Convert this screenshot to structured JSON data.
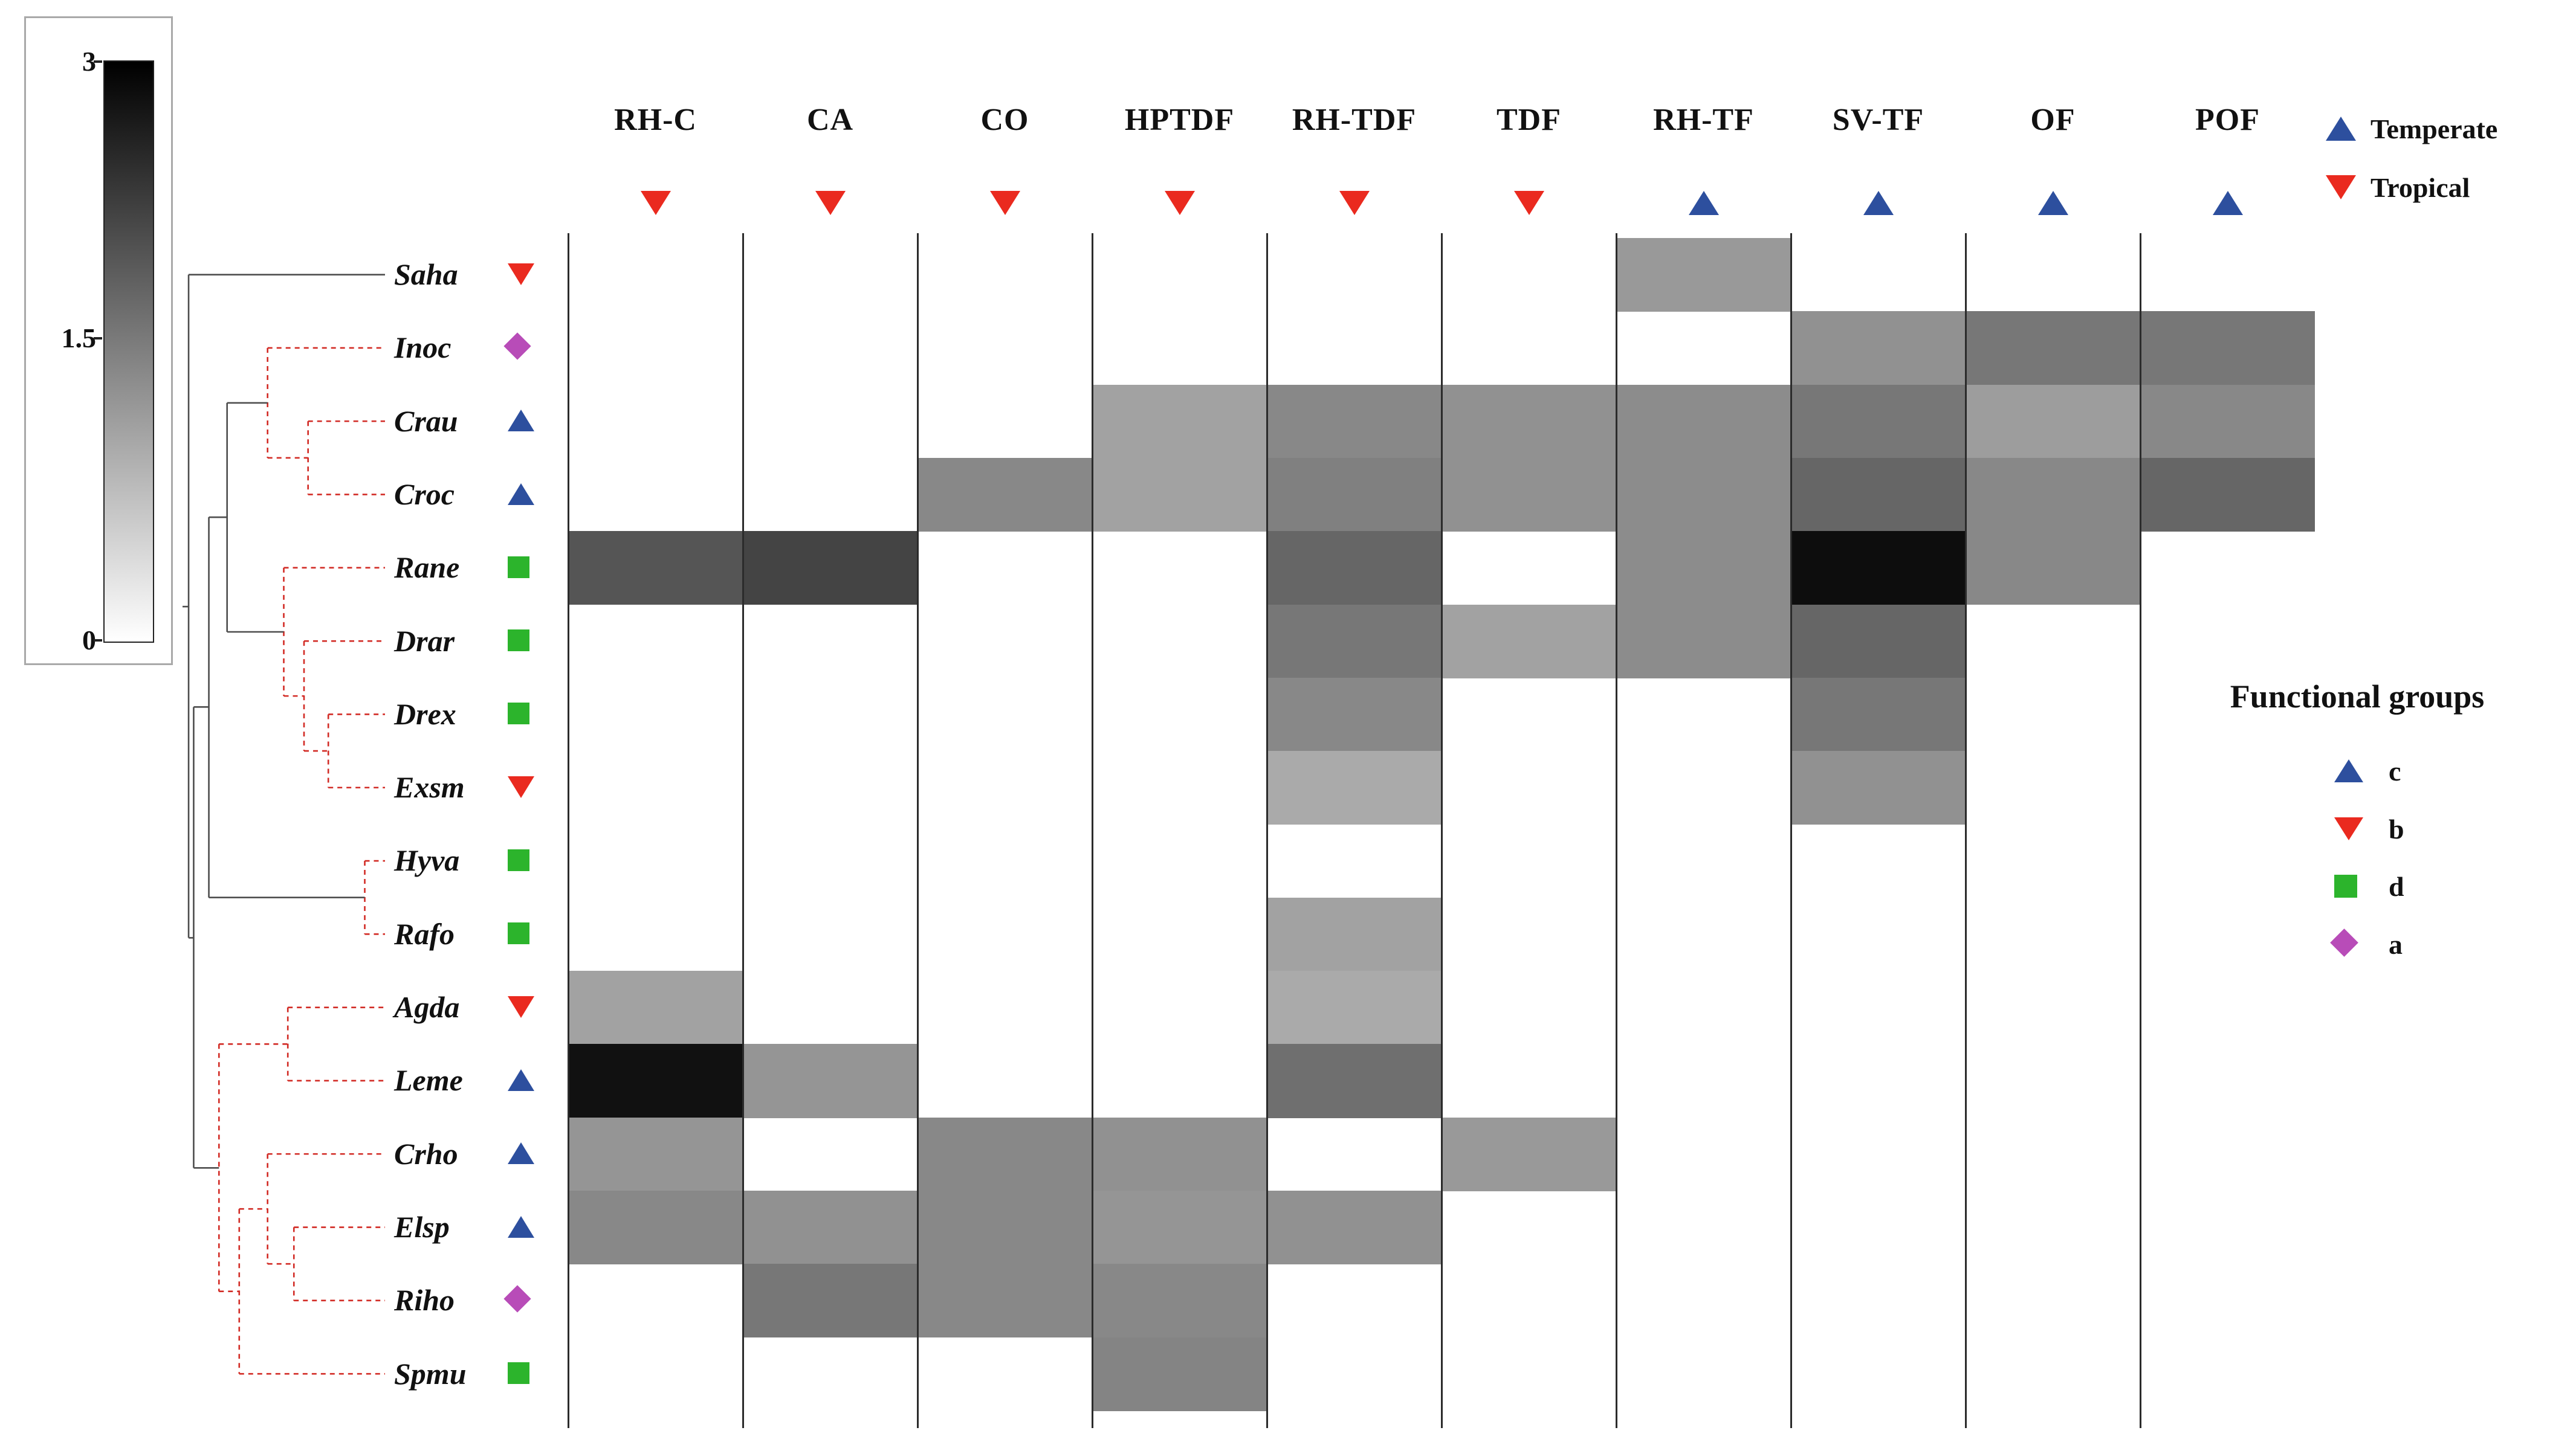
{
  "figure": {
    "type": "clustered-heatmap"
  },
  "colorbar": {
    "max": "3",
    "mid": "1.5",
    "min": "0",
    "top_color": "#000000",
    "bottom_color": "#ffffff"
  },
  "markers": {
    "triangle-up": "#2d4f9e",
    "triangle-down": "#ea2a1f",
    "square": "#2cb42c",
    "diamond": "#b84cb8"
  },
  "climate_legend": {
    "items": [
      {
        "label": "Temperate",
        "marker": "triangle-up"
      },
      {
        "label": "Tropical",
        "marker": "triangle-down"
      }
    ]
  },
  "functional_groups": {
    "title": "Functional groups",
    "items": [
      {
        "label": "c",
        "marker": "triangle-up"
      },
      {
        "label": "b",
        "marker": "triangle-down"
      },
      {
        "label": "d",
        "marker": "square"
      },
      {
        "label": "a",
        "marker": "diamond"
      }
    ]
  },
  "chart_data": {
    "type": "heatmap",
    "title": "",
    "columns": [
      {
        "label": "RH-C",
        "climate": "Tropical",
        "marker": "triangle-down"
      },
      {
        "label": "CA",
        "climate": "Tropical",
        "marker": "triangle-down"
      },
      {
        "label": "CO",
        "climate": "Tropical",
        "marker": "triangle-down"
      },
      {
        "label": "HPTDF",
        "climate": "Tropical",
        "marker": "triangle-down"
      },
      {
        "label": "RH-TDF",
        "climate": "Tropical",
        "marker": "triangle-down"
      },
      {
        "label": "TDF",
        "climate": "Tropical",
        "marker": "triangle-down"
      },
      {
        "label": "RH-TF",
        "climate": "Temperate",
        "marker": "triangle-up"
      },
      {
        "label": "SV-TF",
        "climate": "Temperate",
        "marker": "triangle-up"
      },
      {
        "label": "OF",
        "climate": "Temperate",
        "marker": "triangle-up"
      },
      {
        "label": "POF",
        "climate": "Temperate",
        "marker": "triangle-up"
      }
    ],
    "rows": [
      {
        "label": "Saha",
        "functional_group": "b",
        "marker": "triangle-down"
      },
      {
        "label": "Inoc",
        "functional_group": "a",
        "marker": "diamond"
      },
      {
        "label": "Crau",
        "functional_group": "c",
        "marker": "triangle-up"
      },
      {
        "label": "Croc",
        "functional_group": "c",
        "marker": "triangle-up"
      },
      {
        "label": "Rane",
        "functional_group": "d",
        "marker": "square"
      },
      {
        "label": "Drar",
        "functional_group": "d",
        "marker": "square"
      },
      {
        "label": "Drex",
        "functional_group": "d",
        "marker": "square"
      },
      {
        "label": "Exsm",
        "functional_group": "b",
        "marker": "triangle-down"
      },
      {
        "label": "Hyva",
        "functional_group": "d",
        "marker": "square"
      },
      {
        "label": "Rafo",
        "functional_group": "d",
        "marker": "square"
      },
      {
        "label": "Agda",
        "functional_group": "b",
        "marker": "triangle-down"
      },
      {
        "label": "Leme",
        "functional_group": "c",
        "marker": "triangle-up"
      },
      {
        "label": "Crho",
        "functional_group": "c",
        "marker": "triangle-up"
      },
      {
        "label": "Elsp",
        "functional_group": "c",
        "marker": "triangle-up"
      },
      {
        "label": "Riho",
        "functional_group": "a",
        "marker": "diamond"
      },
      {
        "label": "Spmu",
        "functional_group": "d",
        "marker": "square"
      }
    ],
    "values": [
      [
        0,
        0,
        0,
        0,
        0,
        0,
        1.2,
        0,
        0,
        0
      ],
      [
        0,
        0,
        0,
        0,
        0,
        0,
        0,
        1.3,
        1.6,
        1.6
      ],
      [
        0,
        0,
        0,
        1.1,
        1.4,
        1.3,
        1.35,
        1.6,
        1.15,
        1.4
      ],
      [
        0,
        0,
        1.4,
        1.1,
        1.5,
        1.3,
        1.35,
        1.8,
        1.4,
        1.8
      ],
      [
        2.0,
        2.2,
        0,
        0,
        1.8,
        0,
        1.35,
        2.85,
        1.4,
        0
      ],
      [
        0,
        0,
        0,
        0,
        1.6,
        1.1,
        1.35,
        1.8,
        0,
        0
      ],
      [
        0,
        0,
        0,
        0,
        1.4,
        0,
        0,
        1.6,
        0,
        0
      ],
      [
        0,
        0,
        0,
        0,
        1.0,
        0,
        0,
        1.3,
        0,
        0
      ],
      [
        0,
        0,
        0,
        0,
        0,
        0,
        0,
        0,
        0,
        0
      ],
      [
        0,
        0,
        0,
        0,
        1.1,
        0,
        0,
        0,
        0,
        0
      ],
      [
        1.1,
        0,
        0,
        0,
        1.0,
        0,
        0,
        0,
        0,
        0
      ],
      [
        2.8,
        1.25,
        0,
        0,
        1.7,
        0,
        0,
        0,
        0,
        0
      ],
      [
        1.25,
        0,
        1.4,
        1.3,
        0,
        1.2,
        0,
        0,
        0,
        0
      ],
      [
        1.4,
        1.3,
        1.4,
        1.25,
        1.3,
        0,
        0,
        0,
        0,
        0
      ],
      [
        0,
        1.6,
        1.4,
        1.4,
        0,
        0,
        0,
        0,
        0,
        0
      ],
      [
        0,
        0,
        0,
        1.45,
        0,
        0,
        0,
        0,
        0,
        0
      ]
    ],
    "scale": {
      "min": 0,
      "mid": 1.5,
      "max": 3,
      "min_color": "#ffffff",
      "max_color": "#000000"
    },
    "dendrogram": {
      "styles": {
        "red": {
          "color": "#d22b25",
          "dashed": true
        },
        "gray": {
          "color": "#4d4d4d",
          "dashed": false
        }
      },
      "segments": [
        [
          0.03,
          0,
          1,
          0,
          "gray"
        ],
        [
          0.42,
          1,
          1,
          1,
          "red"
        ],
        [
          0.62,
          2,
          1,
          2,
          "red"
        ],
        [
          0.62,
          3,
          1,
          3,
          "red"
        ],
        [
          0.62,
          2,
          0.62,
          3,
          "red"
        ],
        [
          0.42,
          2.5,
          0.62,
          2.5,
          "red"
        ],
        [
          0.42,
          1,
          0.42,
          2.5,
          "red"
        ],
        [
          0.5,
          4,
          1,
          4,
          "red"
        ],
        [
          0.6,
          5,
          1,
          5,
          "red"
        ],
        [
          0.72,
          6,
          1,
          6,
          "red"
        ],
        [
          0.72,
          7,
          1,
          7,
          "red"
        ],
        [
          0.72,
          6,
          0.72,
          7,
          "red"
        ],
        [
          0.6,
          6.5,
          0.72,
          6.5,
          "red"
        ],
        [
          0.6,
          5,
          0.6,
          6.5,
          "red"
        ],
        [
          0.5,
          5.75,
          0.6,
          5.75,
          "red"
        ],
        [
          0.5,
          4,
          0.5,
          5.75,
          "red"
        ],
        [
          0.22,
          1.75,
          0.42,
          1.75,
          "gray"
        ],
        [
          0.22,
          4.875,
          0.5,
          4.875,
          "gray"
        ],
        [
          0.22,
          1.75,
          0.22,
          4.875,
          "gray"
        ],
        [
          0.9,
          8,
          1,
          8,
          "red"
        ],
        [
          0.9,
          9,
          1,
          9,
          "red"
        ],
        [
          0.9,
          8,
          0.9,
          9,
          "red"
        ],
        [
          0.13,
          8.5,
          0.9,
          8.5,
          "gray"
        ],
        [
          0.13,
          3.31,
          0.22,
          3.31,
          "gray"
        ],
        [
          0.13,
          3.31,
          0.13,
          8.5,
          "gray"
        ],
        [
          0.52,
          10,
          1,
          10,
          "red"
        ],
        [
          0.52,
          11,
          1,
          11,
          "red"
        ],
        [
          0.52,
          10,
          0.52,
          11,
          "red"
        ],
        [
          0.42,
          12,
          1,
          12,
          "red"
        ],
        [
          0.55,
          13,
          1,
          13,
          "red"
        ],
        [
          0.55,
          14,
          1,
          14,
          "red"
        ],
        [
          0.55,
          13,
          0.55,
          14,
          "red"
        ],
        [
          0.42,
          13.5,
          0.55,
          13.5,
          "red"
        ],
        [
          0.42,
          12,
          0.42,
          13.5,
          "red"
        ],
        [
          0.28,
          15,
          1,
          15,
          "red"
        ],
        [
          0.28,
          12.75,
          0.42,
          12.75,
          "red"
        ],
        [
          0.28,
          12.75,
          0.28,
          15,
          "red"
        ],
        [
          0.18,
          10.5,
          0.52,
          10.5,
          "red"
        ],
        [
          0.18,
          13.875,
          0.28,
          13.875,
          "red"
        ],
        [
          0.18,
          10.5,
          0.18,
          13.875,
          "red"
        ],
        [
          0.055,
          5.9,
          0.13,
          5.9,
          "gray"
        ],
        [
          0.055,
          12.19,
          0.18,
          12.19,
          "gray"
        ],
        [
          0.055,
          5.9,
          0.055,
          12.19,
          "gray"
        ],
        [
          0.03,
          9.05,
          0.055,
          9.05,
          "gray"
        ],
        [
          0.03,
          0,
          0.03,
          9.05,
          "gray"
        ],
        [
          0.0,
          4.53,
          0.03,
          4.53,
          "gray"
        ]
      ]
    }
  }
}
